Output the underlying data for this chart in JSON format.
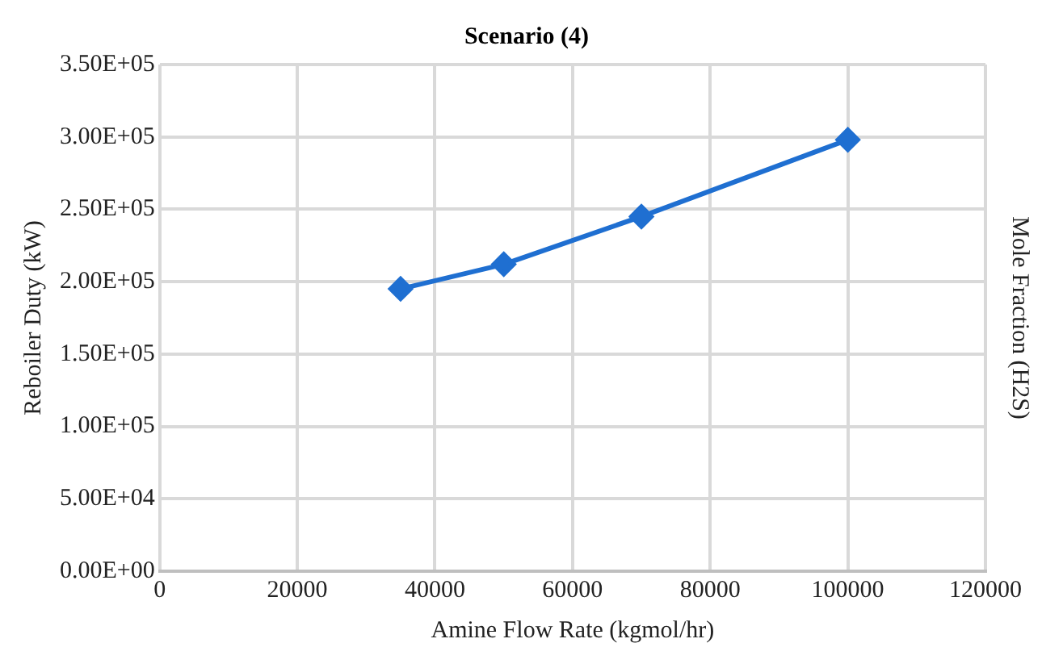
{
  "chart_data": {
    "type": "line",
    "title": "Scenario (4)",
    "xlabel": "Amine Flow Rate (kgmol/hr)",
    "ylabel": "Reboiler Duty (kW)",
    "y2label": "Mole Fraction (H2S)",
    "x": [
      35000,
      50000,
      70000,
      100000
    ],
    "series": [
      {
        "color": "#1f6fd1",
        "values": [
          195000,
          212000,
          245000,
          298000
        ]
      }
    ],
    "xlim": [
      0,
      120000
    ],
    "xticks": [
      0,
      20000,
      40000,
      60000,
      80000,
      100000,
      120000
    ],
    "ylim": [
      0,
      350000
    ],
    "yticks": [
      {
        "value": 0,
        "label": "0.00E+00"
      },
      {
        "value": 50000,
        "label": "5.00E+04"
      },
      {
        "value": 100000,
        "label": "1.00E+05"
      },
      {
        "value": 150000,
        "label": "1.50E+05"
      },
      {
        "value": 200000,
        "label": "2.00E+05"
      },
      {
        "value": 250000,
        "label": "2.50E+05"
      },
      {
        "value": 300000,
        "label": "3.00E+05"
      },
      {
        "value": 350000,
        "label": "3.50E+05"
      }
    ],
    "grid": true,
    "legend": false,
    "marker": "diamond",
    "line_style": "solid"
  }
}
